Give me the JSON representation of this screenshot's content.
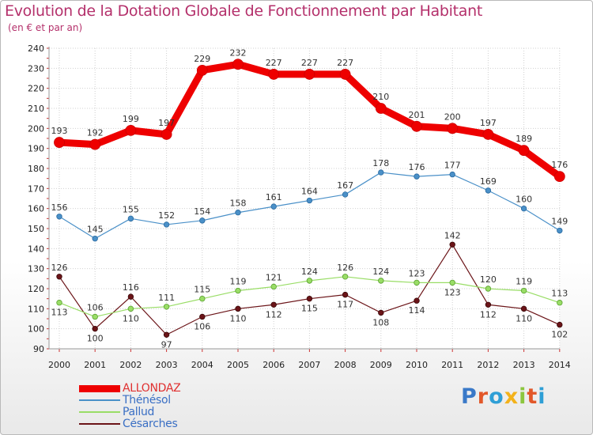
{
  "header": {
    "title": "Evolution de la Dotation Globale de Fonctionnement par Habitant",
    "subtitle": "(en € et par an)"
  },
  "logo": {
    "text": "Proxiti",
    "colors": [
      "#3a79c8",
      "#e2582a",
      "#2f9fd6",
      "#f3b21b",
      "#8cc63f",
      "#e2582a",
      "#2f9fd6"
    ]
  },
  "chart_data": {
    "type": "line",
    "x": [
      "2000",
      "2001",
      "2002",
      "2003",
      "2004",
      "2005",
      "2006",
      "2007",
      "2008",
      "2009",
      "2010",
      "2011",
      "2012",
      "2013",
      "2014"
    ],
    "ylim": [
      90,
      240
    ],
    "yticks": [
      90,
      100,
      110,
      120,
      130,
      140,
      150,
      160,
      170,
      180,
      190,
      200,
      210,
      220,
      230,
      240
    ],
    "grid": true,
    "legend_position": "bottom-left",
    "series": [
      {
        "name": "ALLONDAZ",
        "color": "#ee0000",
        "values": [
          193,
          192,
          199,
          197,
          229,
          232,
          227,
          227,
          227,
          210,
          201,
          200,
          197,
          189,
          176
        ]
      },
      {
        "name": "Thénésol",
        "color": "#4a90c8",
        "values": [
          156,
          145,
          155,
          152,
          154,
          158,
          161,
          164,
          167,
          178,
          176,
          177,
          169,
          160,
          149
        ]
      },
      {
        "name": "Pallud",
        "color": "#99dd66",
        "values": [
          113,
          106,
          110,
          111,
          115,
          119,
          121,
          124,
          126,
          124,
          123,
          123,
          120,
          119,
          113
        ]
      },
      {
        "name": "Césarches",
        "color": "#6b1418",
        "values": [
          126,
          100,
          116,
          97,
          106,
          110,
          112,
          115,
          117,
          108,
          114,
          142,
          112,
          110,
          102
        ]
      }
    ]
  }
}
